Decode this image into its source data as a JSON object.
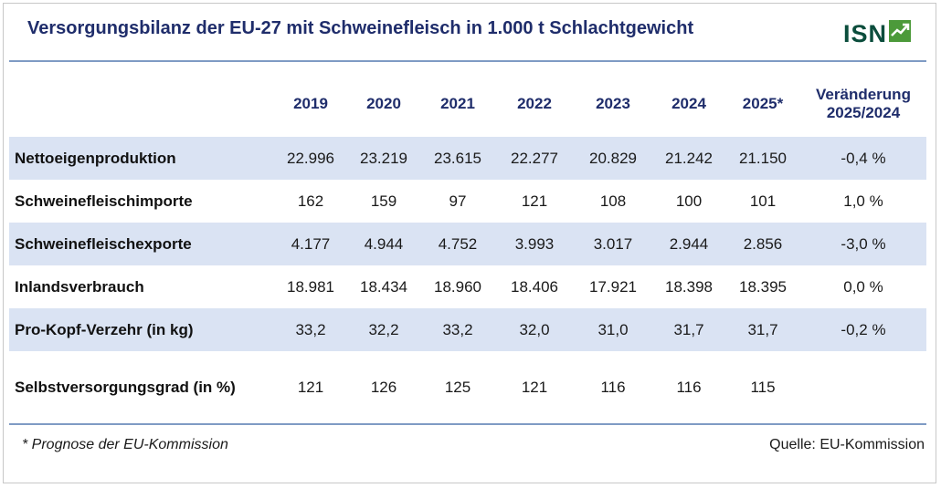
{
  "title": "Versorgungsbilanz der EU-27 mit Schweinefleisch in 1.000 t Schlachtgewicht",
  "logo": {
    "text": "ISN",
    "icon": "isn-logo-icon",
    "color": "#0b4d3c",
    "icon_color": "#4c9a3a"
  },
  "colors": {
    "title": "#1f2d6b",
    "row_shade": "#dae3f3",
    "rule": "#7f9bc4"
  },
  "table": {
    "columns": [
      "2019",
      "2020",
      "2021",
      "2022",
      "2023",
      "2024",
      "2025*",
      "Veränderung",
      "2025/2024"
    ],
    "rows": [
      {
        "label": "Nettoeigenproduktion",
        "values": [
          "22.996",
          "23.219",
          "23.615",
          "22.277",
          "20.829",
          "21.242",
          "21.150",
          "-0,4 %"
        ]
      },
      {
        "label": "Schweinefleischimporte",
        "values": [
          "162",
          "159",
          "97",
          "121",
          "108",
          "100",
          "101",
          "1,0 %"
        ]
      },
      {
        "label": "Schweinefleischexporte",
        "values": [
          "4.177",
          "4.944",
          "4.752",
          "3.993",
          "3.017",
          "2.944",
          "2.856",
          "-3,0 %"
        ]
      },
      {
        "label": "Inlandsverbrauch",
        "values": [
          "18.981",
          "18.434",
          "18.960",
          "18.406",
          "17.921",
          "18.398",
          "18.395",
          "0,0 %"
        ]
      },
      {
        "label": "Pro-Kopf-Verzehr (in kg)",
        "values": [
          "33,2",
          "32,2",
          "33,2",
          "32,0",
          "31,0",
          "31,7",
          "31,7",
          "-0,2 %"
        ]
      },
      {
        "label": "Selbstversorgungsgrad (in %)",
        "values": [
          "121",
          "126",
          "125",
          "121",
          "116",
          "116",
          "115",
          ""
        ]
      }
    ]
  },
  "footnote": "* Prognose der EU-Kommission",
  "source": "Quelle: EU-Kommission"
}
